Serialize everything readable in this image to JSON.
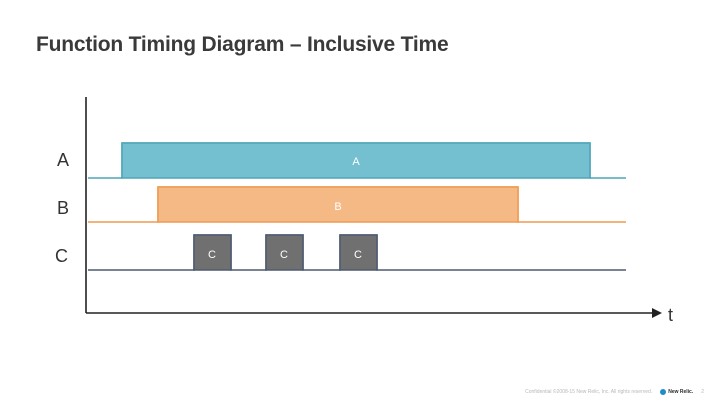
{
  "slide": {
    "title": "Function Timing Diagram – Inclusive Time"
  },
  "diagram": {
    "rows": [
      {
        "id": "A",
        "label": "A",
        "color": "#75c0d0",
        "stroke": "#4ea5b8",
        "segments": [
          {
            "label": "A"
          }
        ]
      },
      {
        "id": "B",
        "label": "B",
        "color": "#f5b985",
        "stroke": "#ef9a50",
        "segments": [
          {
            "label": "B"
          }
        ]
      },
      {
        "id": "C",
        "label": "C",
        "color": "#707070",
        "stroke": "#4d5a70",
        "segments": [
          {
            "label": "C"
          },
          {
            "label": "C"
          },
          {
            "label": "C"
          }
        ]
      }
    ],
    "axis_label": "t",
    "axis_color": "#222222"
  },
  "footer": {
    "confidential": "Confidential ©2008-15 New Relic, Inc. All rights reserved.",
    "logo_text": "New Relic.",
    "page_number": "2",
    "brand_color": "#1d8cc8"
  }
}
